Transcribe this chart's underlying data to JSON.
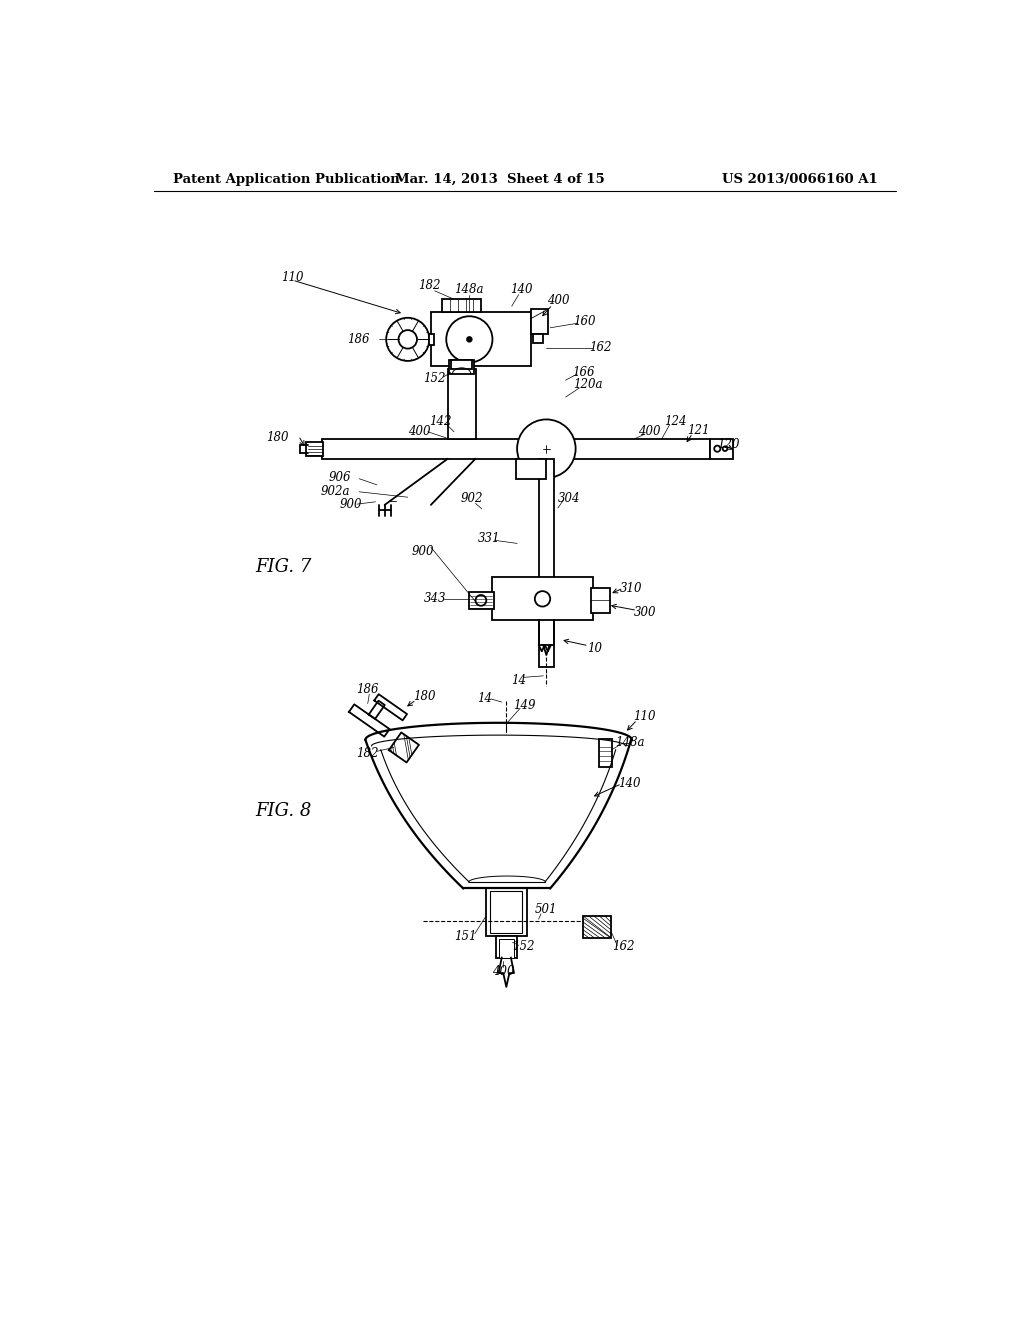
{
  "bg_color": "#ffffff",
  "header_text_left": "Patent Application Publication",
  "header_text_mid": "Mar. 14, 2013  Sheet 4 of 15",
  "header_text_right": "US 2013/0066160 A1",
  "fig7_label": "FIG. 7",
  "fig8_label": "FIG. 8",
  "line_color": "#000000",
  "line_width": 1.3,
  "label_fontsize": 8.5,
  "header_fontsize": 9.5,
  "fig_label_fontsize": 13
}
